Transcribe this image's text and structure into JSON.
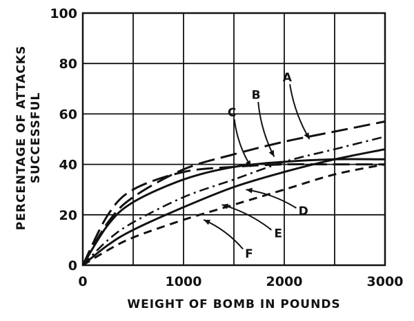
{
  "chart_data": {
    "type": "line",
    "title": "",
    "xlabel": "WEIGHT OF BOMB IN POUNDS",
    "ylabel_lines": [
      "PERCENTAGE OF ATTACKS",
      "SUCCESSFUL"
    ],
    "xlim": [
      0,
      3000
    ],
    "ylim": [
      0,
      100
    ],
    "x_ticks": [
      0,
      1000,
      2000,
      3000
    ],
    "x_tick_labels": [
      "0",
      "1000",
      "2000",
      "3000"
    ],
    "y_ticks": [
      0,
      20,
      40,
      60,
      80,
      100
    ],
    "y_tick_labels": [
      "0",
      "20",
      "40",
      "60",
      "80",
      "100"
    ],
    "grid": true,
    "grid_x_step": 500,
    "grid_y_step": 20,
    "series": [
      {
        "name": "A",
        "style": "long-dash",
        "x": [
          0,
          250,
          500,
          1000,
          1500,
          2000,
          2500,
          3000
        ],
        "y": [
          0,
          17,
          27,
          38,
          44,
          49,
          53,
          57
        ]
      },
      {
        "name": "B",
        "style": "solid",
        "x": [
          0,
          250,
          500,
          1000,
          1500,
          2000,
          2500,
          3000
        ],
        "y": [
          0,
          16,
          25,
          34,
          39,
          41,
          42,
          42
        ]
      },
      {
        "name": "C",
        "style": "long-dash",
        "x": [
          0,
          250,
          500,
          1000,
          1500,
          2000,
          2500,
          3000
        ],
        "y": [
          0,
          20,
          30,
          37,
          39,
          40,
          40,
          40
        ]
      },
      {
        "name": "D",
        "style": "dash-dot",
        "x": [
          0,
          250,
          500,
          1000,
          1500,
          2000,
          2500,
          3000
        ],
        "y": [
          0,
          10,
          17,
          27,
          34,
          41,
          46,
          51
        ]
      },
      {
        "name": "E",
        "style": "solid",
        "x": [
          0,
          250,
          500,
          1000,
          1500,
          2000,
          2500,
          3000
        ],
        "y": [
          0,
          8,
          14,
          23,
          31,
          37,
          42,
          46
        ]
      },
      {
        "name": "F",
        "style": "short-dash",
        "x": [
          0,
          250,
          500,
          1000,
          1500,
          2000,
          2500,
          3000
        ],
        "y": [
          0,
          6,
          11,
          18,
          24,
          30,
          36,
          40
        ]
      }
    ],
    "annotations": [
      {
        "label": "A",
        "text_at": [
          2030,
          73
        ],
        "points_to": [
          2250,
          50
        ]
      },
      {
        "label": "B",
        "text_at": [
          1720,
          66
        ],
        "points_to": [
          1900,
          43
        ]
      },
      {
        "label": "C",
        "text_at": [
          1480,
          59
        ],
        "points_to": [
          1670,
          39
        ]
      },
      {
        "label": "D",
        "text_at": [
          2190,
          20
        ],
        "points_to": [
          1620,
          30
        ]
      },
      {
        "label": "E",
        "text_at": [
          1940,
          11
        ],
        "points_to": [
          1380,
          24
        ]
      },
      {
        "label": "F",
        "text_at": [
          1650,
          3
        ],
        "points_to": [
          1200,
          18
        ]
      }
    ]
  }
}
